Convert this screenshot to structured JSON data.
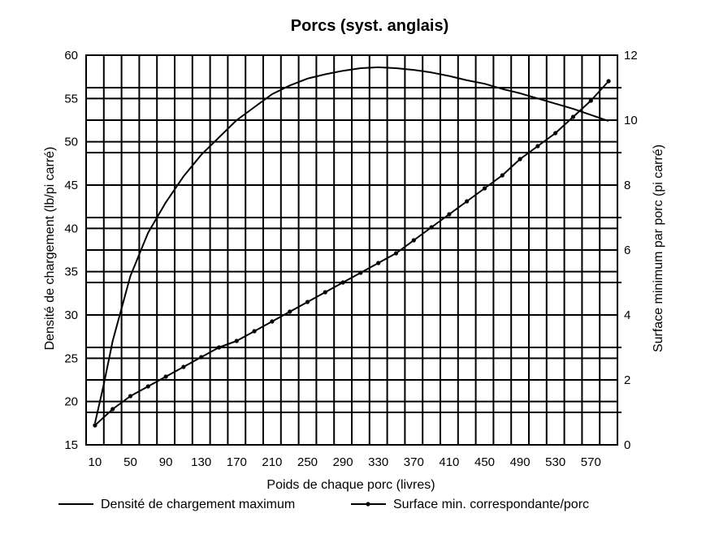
{
  "chart_data": {
    "type": "line",
    "title": "Porcs (syst. anglais)",
    "xlabel": "Poids de chaque porc (livres)",
    "ylabel_left": "Densité de chargement (lb/pi carré)",
    "ylabel_right": "Surface minimum par porc (pi carré)",
    "x_ticks": [
      "10",
      "50",
      "90",
      "130",
      "170",
      "210",
      "250",
      "290",
      "330",
      "370",
      "410",
      "450",
      "490",
      "530",
      "570"
    ],
    "y_left_ticks": [
      "60",
      "55",
      "50",
      "45",
      "40",
      "35",
      "30",
      "25",
      "20",
      "15"
    ],
    "y_right_ticks": [
      "12",
      "10",
      "8",
      "6",
      "4",
      "2",
      "0"
    ],
    "xlim": [
      0,
      600
    ],
    "ylim_left": [
      15,
      60
    ],
    "ylim_right": [
      0,
      12
    ],
    "grid": true,
    "series": [
      {
        "name": "Densité de chargement maximum",
        "axis": "left",
        "marker": "none",
        "x": [
          10,
          20,
          30,
          50,
          70,
          90,
          110,
          130,
          150,
          170,
          190,
          210,
          230,
          250,
          270,
          290,
          310,
          330,
          350,
          370,
          390,
          410,
          430,
          450,
          470,
          490,
          510,
          530,
          550,
          570,
          590
        ],
        "values": [
          17.5,
          22.0,
          27.0,
          34.5,
          39.5,
          43.0,
          46.0,
          48.5,
          50.5,
          52.5,
          54.0,
          55.5,
          56.5,
          57.3,
          57.8,
          58.2,
          58.5,
          58.6,
          58.5,
          58.3,
          58.0,
          57.6,
          57.1,
          56.7,
          56.1,
          55.6,
          55.0,
          54.4,
          53.8,
          53.1,
          52.4
        ]
      },
      {
        "name": "Surface min. correspondante/porc",
        "axis": "right",
        "marker": "dot",
        "x": [
          10,
          30,
          50,
          70,
          90,
          110,
          130,
          150,
          170,
          190,
          210,
          230,
          250,
          270,
          290,
          310,
          330,
          350,
          370,
          390,
          410,
          430,
          450,
          470,
          490,
          510,
          530,
          550,
          570,
          590
        ],
        "values": [
          0.6,
          1.1,
          1.5,
          1.8,
          2.1,
          2.4,
          2.7,
          3.0,
          3.2,
          3.5,
          3.8,
          4.1,
          4.4,
          4.7,
          5.0,
          5.3,
          5.6,
          5.9,
          6.3,
          6.7,
          7.1,
          7.5,
          7.9,
          8.3,
          8.8,
          9.2,
          9.6,
          10.1,
          10.6,
          11.2
        ]
      }
    ]
  },
  "legend": {
    "series1_label": "Densité de chargement maximum",
    "series2_label": "Surface min. correspondante/porc"
  }
}
